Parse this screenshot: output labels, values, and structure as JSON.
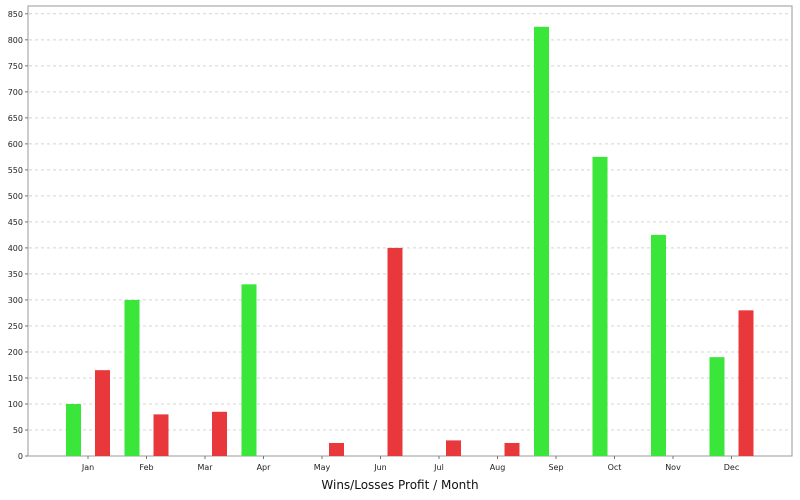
{
  "chart_data": {
    "type": "bar",
    "title": "",
    "xlabel": "Wins/Losses Profit / Month",
    "ylabel": "",
    "categories": [
      "Jan",
      "Feb",
      "Mar",
      "Apr",
      "May",
      "Jun",
      "Jul",
      "Aug",
      "Sep",
      "Oct",
      "Nov",
      "Dec"
    ],
    "series": [
      {
        "color": "#3ae63a",
        "values": [
          100,
          300,
          0,
          330,
          0,
          0,
          0,
          0,
          825,
          575,
          425,
          190
        ]
      },
      {
        "color": "#e8383c",
        "values": [
          165,
          80,
          85,
          0,
          25,
          400,
          30,
          25,
          0,
          0,
          0,
          280
        ]
      }
    ],
    "ylim": [
      0,
      865
    ],
    "yticks": [
      0,
      50,
      100,
      150,
      200,
      250,
      300,
      350,
      400,
      450,
      500,
      550,
      600,
      650,
      700,
      750,
      800,
      850
    ],
    "grid": true,
    "legend": "none"
  }
}
